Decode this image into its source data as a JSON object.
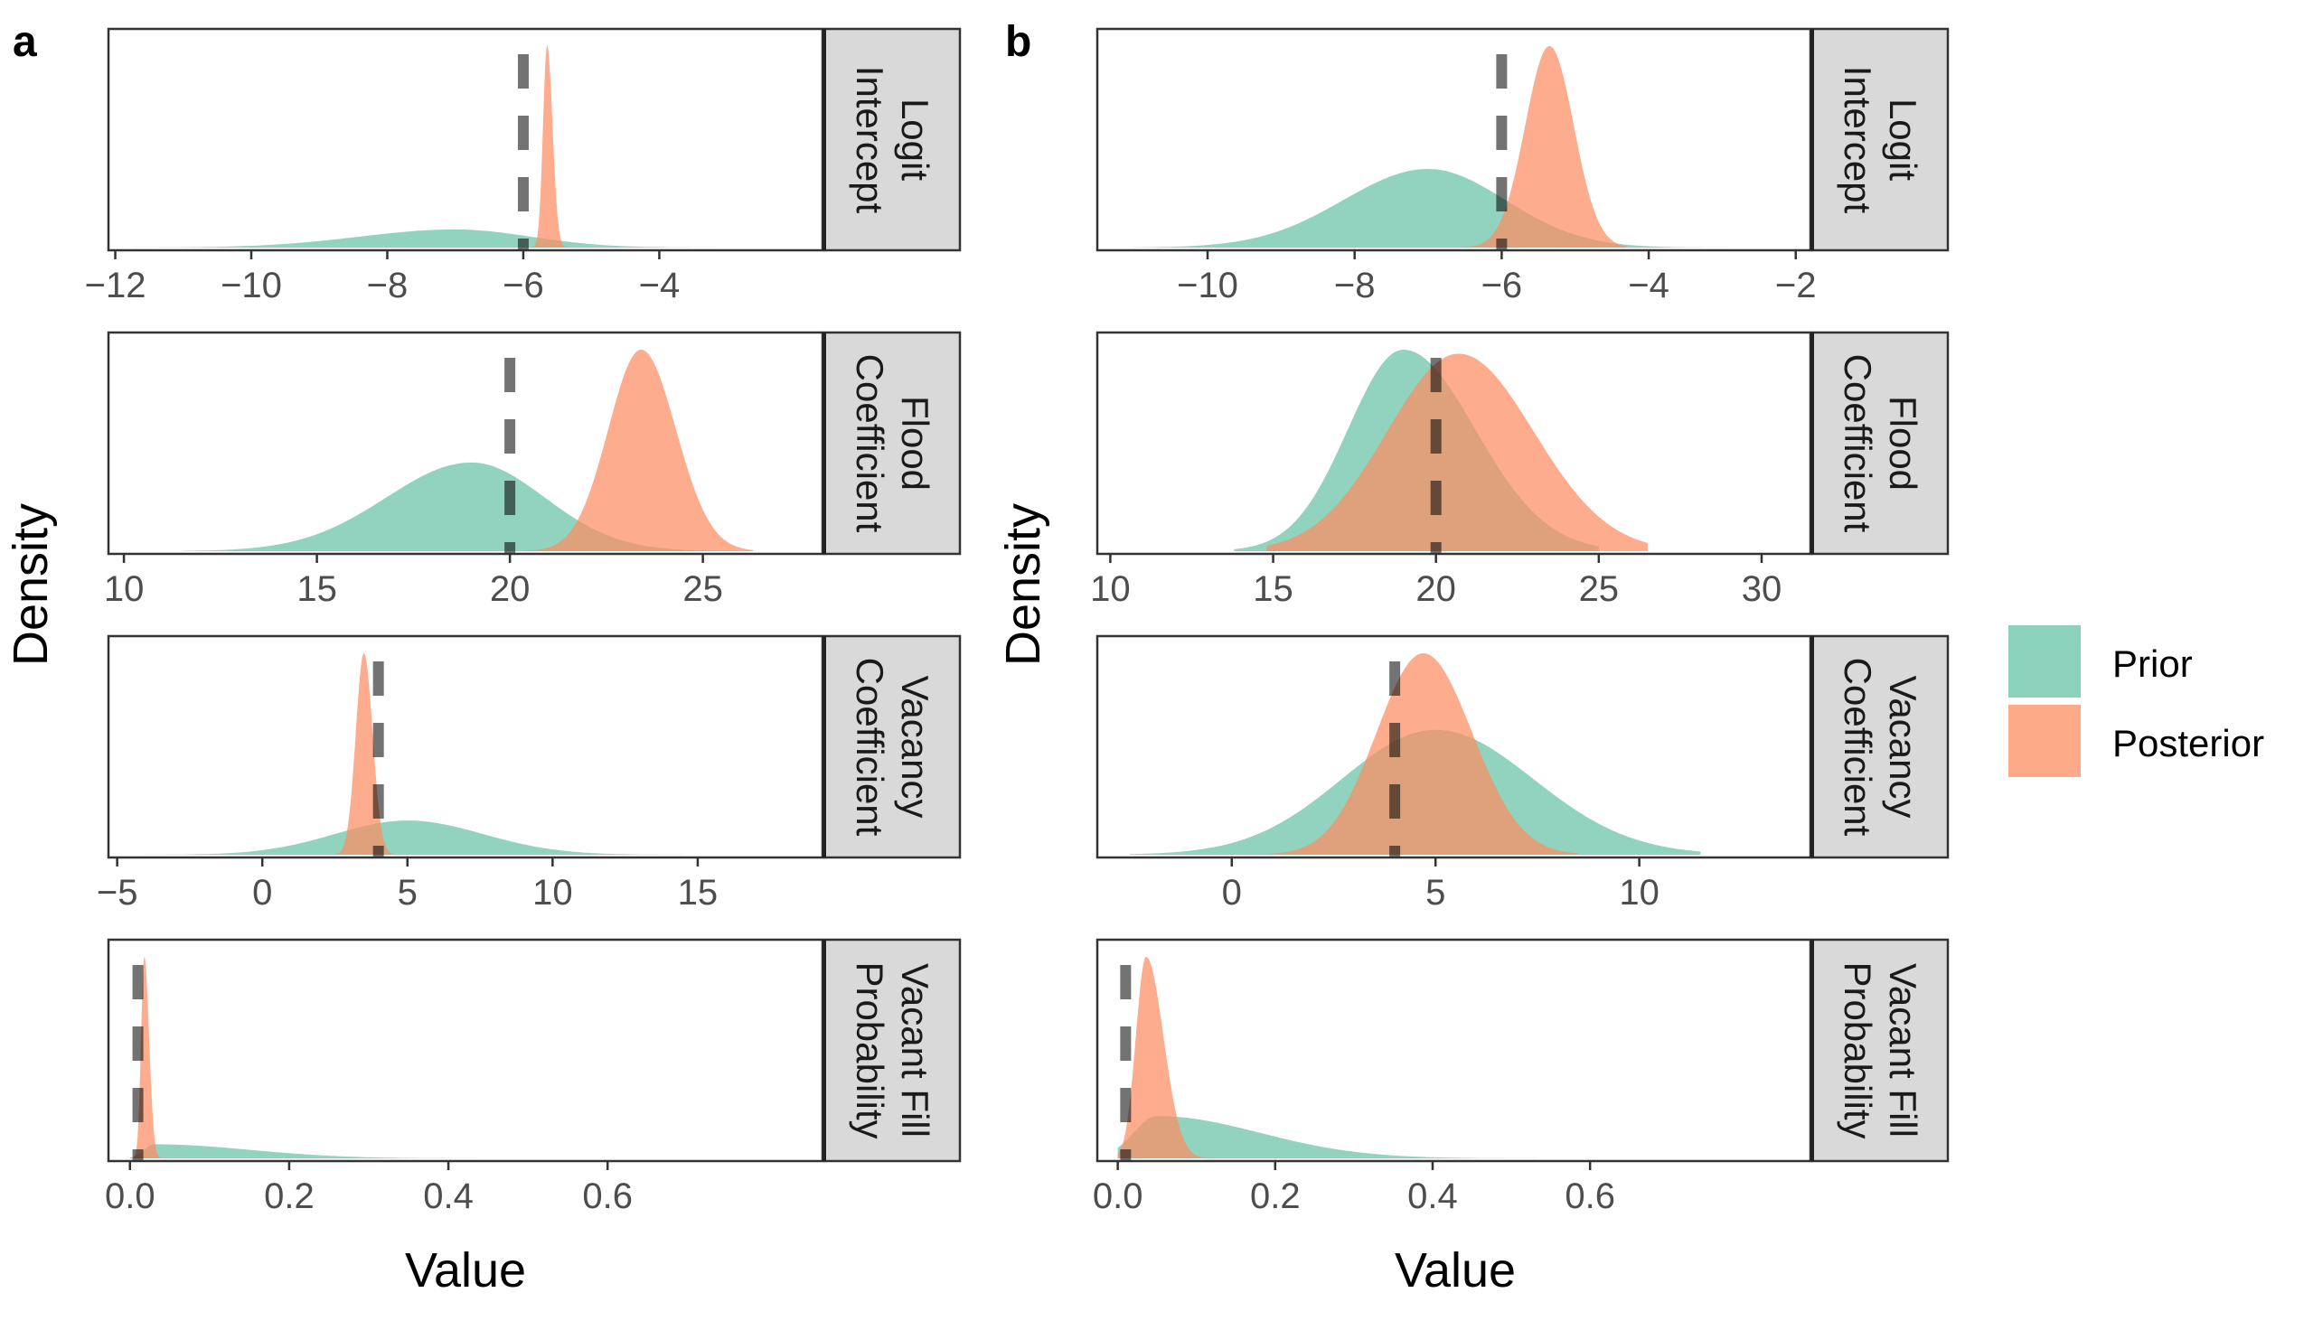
{
  "figure": {
    "panel_labels": [
      "a",
      "b"
    ],
    "ylabel": "Density",
    "xlabel": "Value"
  },
  "legend": {
    "items": [
      {
        "label": "Prior",
        "color": "#66c2a5"
      },
      {
        "label": "Posterior",
        "color": "#fc8d62"
      }
    ]
  },
  "chart_data": [
    {
      "type": "area",
      "panel": "a",
      "xlabel": "Value",
      "ylabel": "Density",
      "facets": [
        {
          "strip": [
            "Logit",
            "Intercept"
          ],
          "xlim": [
            -12.1,
            -1.6
          ],
          "xticks": [
            -12,
            -10,
            -8,
            -6,
            -4
          ],
          "tick_labels": [
            "−12",
            "−10",
            "−8",
            "−6",
            "−4"
          ],
          "true_value": -6.0,
          "series": [
            {
              "name": "Prior",
              "range": [
                -11.7,
                -2.8
              ],
              "points": [
                [
                  -7,
                  1.0,
                  1.4,
                  1.1
                ]
              ],
              "peak": 0.09
            },
            {
              "name": "Posterior",
              "range": [
                -6.2,
                -5.3
              ],
              "points": [
                [
                  -5.65,
                  1.0,
                  0.06,
                  0.08
                ]
              ],
              "peak": 1.0
            }
          ]
        },
        {
          "strip": [
            "Flood",
            "Coefficient"
          ],
          "xlim": [
            9.6,
            28.1
          ],
          "xticks": [
            10,
            15,
            20,
            25
          ],
          "tick_labels": [
            "10",
            "15",
            "20",
            "25"
          ],
          "true_value": 20,
          "series": [
            {
              "name": "Prior",
              "range": [
                11.5,
                26.5
              ],
              "points": [
                [
                  19,
                  1.0,
                  2.2,
                  1.9
                ]
              ],
              "peak": 0.44
            },
            {
              "name": "Posterior",
              "range": [
                20.4,
                26.3
              ],
              "points": [
                [
                  23.4,
                  1.0,
                  0.85,
                  0.9
                ]
              ],
              "peak": 1.0
            }
          ]
        },
        {
          "strip": [
            "Vacancy",
            "Coefficient"
          ],
          "xlim": [
            -5.3,
            19.3
          ],
          "xticks": [
            -5,
            0,
            5,
            10,
            15
          ],
          "tick_labels": [
            "−5",
            "0",
            "5",
            "10",
            "15"
          ],
          "true_value": 4.0,
          "series": [
            {
              "name": "Prior",
              "range": [
                -4.5,
                14.5
              ],
              "points": [
                [
                  5,
                  1.0,
                  2.5,
                  2.6
                ]
              ],
              "peak": 0.17
            },
            {
              "name": "Posterior",
              "range": [
                2.5,
                4.6
              ],
              "points": [
                [
                  3.5,
                  1.0,
                  0.28,
                  0.3
                ]
              ],
              "peak": 1.0
            }
          ]
        },
        {
          "strip": [
            "Vacant Fill",
            "Probability"
          ],
          "xlim": [
            -0.027,
            0.87
          ],
          "xticks": [
            0.0,
            0.2,
            0.4,
            0.6
          ],
          "tick_labels": [
            "0.0",
            "0.2",
            "0.4",
            "0.6"
          ],
          "true_value": 0.01,
          "series": [
            {
              "name": "Prior",
              "range": [
                0.0,
                0.7
              ],
              "points": [
                [
                  0.03,
                  1.0,
                  0.012,
                  0.12
                ]
              ],
              "peak": 0.07
            },
            {
              "name": "Posterior",
              "range": [
                0.0,
                0.04
              ],
              "points": [
                [
                  0.018,
                  1.0,
                  0.004,
                  0.006
                ]
              ],
              "peak": 1.0
            }
          ]
        }
      ]
    },
    {
      "type": "area",
      "panel": "b",
      "xlabel": "Value",
      "ylabel": "Density",
      "facets": [
        {
          "strip": [
            "Logit",
            "Intercept"
          ],
          "xlim": [
            -11.5,
            -1.8
          ],
          "xticks": [
            -10,
            -8,
            -6,
            -4,
            -2
          ],
          "tick_labels": [
            "−10",
            "−8",
            "−6",
            "−4",
            "−2"
          ],
          "true_value": -6.0,
          "series": [
            {
              "name": "Prior",
              "range": [
                -11.0,
                -2.8
              ],
              "points": [
                [
                  -7,
                  1.0,
                  1.15,
                  1.05
                ]
              ],
              "peak": 0.39
            },
            {
              "name": "Posterior",
              "range": [
                -6.6,
                -4.3
              ],
              "points": [
                [
                  -5.35,
                  1.0,
                  0.33,
                  0.33
                ]
              ],
              "peak": 1.0
            }
          ]
        },
        {
          "strip": [
            "Flood",
            "Coefficient"
          ],
          "xlim": [
            9.6,
            31.5
          ],
          "xticks": [
            10,
            15,
            20,
            25,
            30
          ],
          "tick_labels": [
            "10",
            "15",
            "20",
            "25",
            "30"
          ],
          "true_value": 20,
          "series": [
            {
              "name": "Prior",
              "range": [
                13.8,
                25.0
              ],
              "points": [
                [
                  19,
                  1.0,
                  1.7,
                  2.2
                ]
              ],
              "peak": 1.0
            },
            {
              "name": "Posterior",
              "range": [
                14.8,
                26.5
              ],
              "points": [
                [
                  20.7,
                  1.0,
                  2.2,
                  2.3
                ]
              ],
              "peak": 0.98
            }
          ]
        },
        {
          "strip": [
            "Vacancy",
            "Coefficient"
          ],
          "xlim": [
            -3.3,
            14.2
          ],
          "xticks": [
            0,
            5,
            10
          ],
          "tick_labels": [
            "0",
            "5",
            "10"
          ],
          "true_value": 4.0,
          "series": [
            {
              "name": "Prior",
              "range": [
                -2.5,
                11.5
              ],
              "points": [
                [
                  5,
                  1.0,
                  2.3,
                  2.4
                ]
              ],
              "peak": 0.62
            },
            {
              "name": "Posterior",
              "range": [
                -1.0,
                8.5
              ],
              "points": [
                [
                  4.7,
                  1.0,
                  1.15,
                  1.2
                ]
              ],
              "peak": 1.0
            }
          ]
        },
        {
          "strip": [
            "Vacant Fill",
            "Probability"
          ],
          "xlim": [
            -0.026,
            0.88
          ],
          "xticks": [
            0.0,
            0.2,
            0.4,
            0.6
          ],
          "tick_labels": [
            "0.0",
            "0.2",
            "0.4",
            "0.6"
          ],
          "true_value": 0.01,
          "series": [
            {
              "name": "Prior",
              "range": [
                0.0,
                0.76
              ],
              "points": [
                [
                  0.05,
                  1.0,
                  0.03,
                  0.13
                ]
              ],
              "peak": 0.21
            },
            {
              "name": "Posterior",
              "range": [
                0.0,
                0.14
              ],
              "points": [
                [
                  0.036,
                  1.0,
                  0.013,
                  0.022
                ]
              ],
              "peak": 1.0
            }
          ]
        }
      ]
    }
  ]
}
